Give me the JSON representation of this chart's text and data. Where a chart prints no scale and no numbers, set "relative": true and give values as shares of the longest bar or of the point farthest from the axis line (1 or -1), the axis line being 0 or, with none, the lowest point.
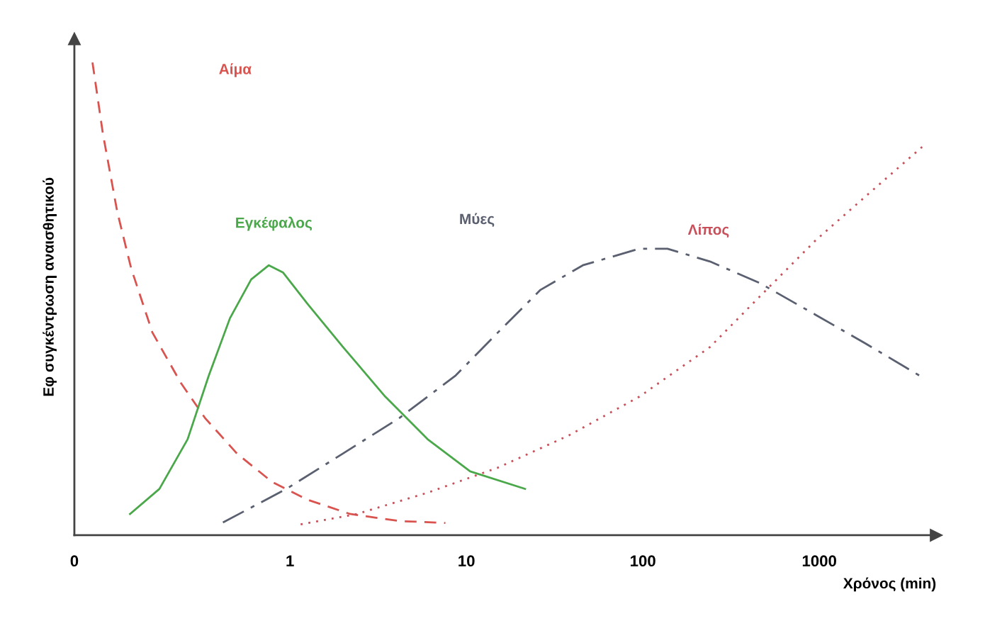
{
  "chart_data": {
    "type": "line",
    "relative": true,
    "log": "x",
    "grid": false,
    "legend": false,
    "marker": "none",
    "xlabel": "Χρόνος (min)",
    "ylabel": "Εφ συγκέντρωση αναισθητικού",
    "xlim": [
      0.06,
      4600
    ],
    "xticks": [
      {
        "value": 0.06,
        "label": "0"
      },
      1,
      10,
      100,
      1000
    ],
    "series": [
      {
        "name": "Αίμα",
        "color": "#d9534f",
        "line_style": "dashed",
        "x": [
          0.076,
          0.087,
          0.105,
          0.126,
          0.166,
          0.24,
          0.33,
          0.5,
          0.79,
          1.26,
          2.19,
          4.17,
          7.6
        ],
        "values": [
          1.0,
          0.85,
          0.684,
          0.564,
          0.429,
          0.323,
          0.248,
          0.173,
          0.113,
          0.075,
          0.045,
          0.03,
          0.026
        ]
      },
      {
        "name": "Εγκέφαλος",
        "color": "#4aa84a",
        "line_style": "solid",
        "x": [
          0.124,
          0.182,
          0.263,
          0.347,
          0.457,
          0.603,
          0.759,
          0.912,
          1.26,
          2.0,
          3.47,
          6.03,
          10.5,
          21.5
        ],
        "values": [
          0.045,
          0.098,
          0.203,
          0.338,
          0.459,
          0.541,
          0.571,
          0.556,
          0.489,
          0.398,
          0.293,
          0.203,
          0.135,
          0.098
        ]
      },
      {
        "name": "Μύες",
        "color": "#5a6070",
        "line_style": "dashdot",
        "x": [
          0.417,
          0.955,
          2.0,
          4.17,
          8.7,
          15.1,
          26.3,
          45.7,
          95.5,
          138,
          240,
          457,
          955,
          1820,
          3800
        ],
        "values": [
          0.027,
          0.098,
          0.173,
          0.248,
          0.338,
          0.429,
          0.519,
          0.571,
          0.606,
          0.606,
          0.579,
          0.534,
          0.466,
          0.406,
          0.335
        ]
      },
      {
        "name": "Λίπος",
        "color": "#c8505a",
        "line_style": "dotted",
        "x": [
          1.15,
          2.4,
          6.03,
          15.1,
          38,
          95.5,
          240,
          457,
          955,
          1995,
          3980
        ],
        "values": [
          0.023,
          0.045,
          0.09,
          0.143,
          0.211,
          0.293,
          0.398,
          0.504,
          0.624,
          0.729,
          0.827
        ]
      }
    ]
  }
}
